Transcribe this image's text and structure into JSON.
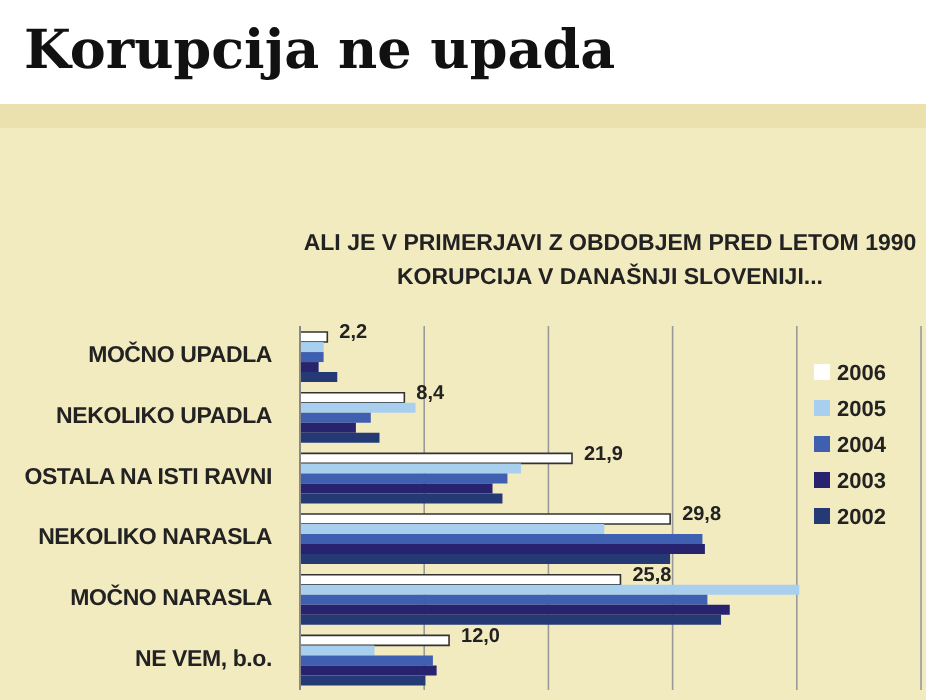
{
  "chart_data": {
    "type": "bar",
    "orientation": "horizontal",
    "title": "Korupcija ne upada",
    "subtitle": "ALI JE V PRIMERJAVI Z OBDOBJEM PRED LETOM 1990\nKORUPCIJA V DANAŠNJI SLOVENIJI...",
    "categories": [
      "MOČNO UPADLA",
      "NEKOLIKO UPADLA",
      "OSTALA NA ISTI RAVNI",
      "NEKOLIKO NARASLA",
      "MOČNO NARASLA",
      "NE VEM, b.o."
    ],
    "series": [
      {
        "name": "2006",
        "color": "#ffffff",
        "values": [
          2.2,
          8.4,
          21.9,
          29.8,
          25.8,
          12.0
        ],
        "value_labels": [
          "2,2",
          "8,4",
          "21,9",
          "29,8",
          "25,8",
          "12,0"
        ]
      },
      {
        "name": "2005",
        "color": "#a8cfee",
        "values": [
          1.9,
          9.3,
          17.8,
          24.5,
          40.2,
          6.0
        ]
      },
      {
        "name": "2004",
        "color": "#3f5fb0",
        "values": [
          1.9,
          5.7,
          16.7,
          32.4,
          32.8,
          10.7
        ]
      },
      {
        "name": "2003",
        "color": "#27236e",
        "values": [
          1.5,
          4.5,
          15.5,
          32.6,
          34.6,
          11.0
        ]
      },
      {
        "name": "2002",
        "color": "#253a74",
        "values": [
          3.0,
          6.4,
          16.3,
          29.8,
          33.9,
          10.1
        ]
      }
    ],
    "xlim": [
      0,
      50
    ],
    "xticks": [
      {
        "value": 0,
        "label": null
      },
      {
        "value": 10,
        "label": null
      },
      {
        "value": 20,
        "label": null
      },
      {
        "value": 30,
        "label": null
      },
      {
        "value": 40,
        "label": null
      },
      {
        "value": 50,
        "label": null
      }
    ],
    "grid": "x",
    "legend": "right",
    "tick_labels": "y"
  }
}
